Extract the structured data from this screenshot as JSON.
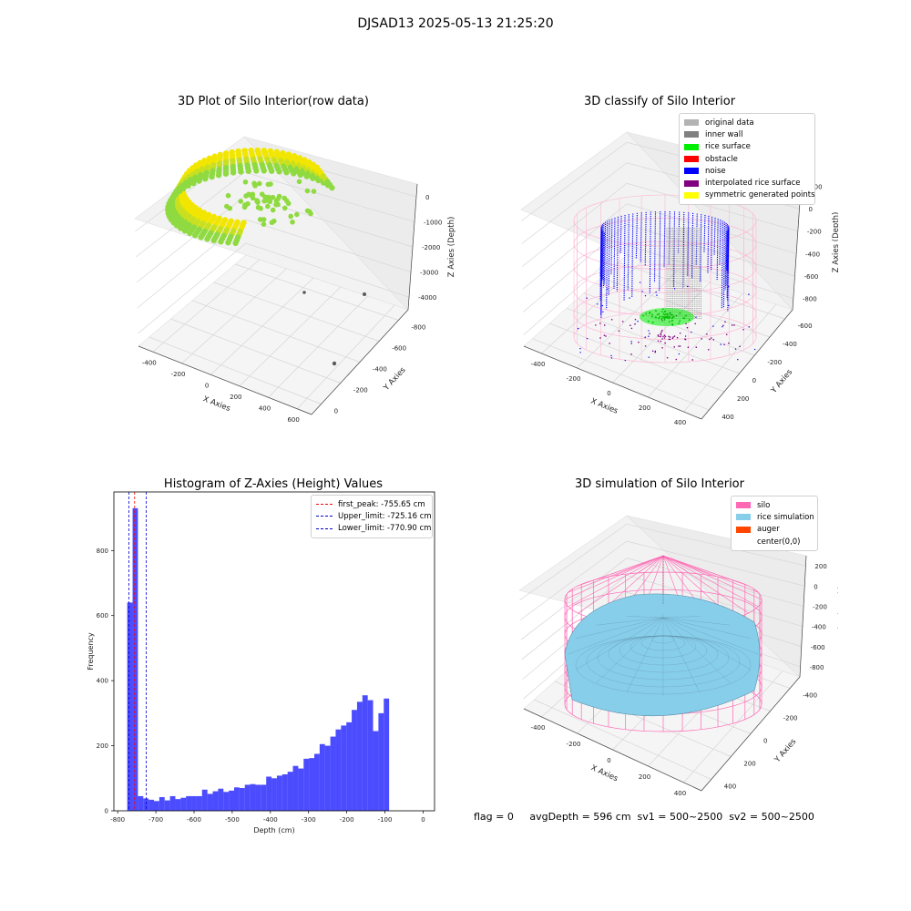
{
  "suptitle": "DJSAD13 2025-05-13 21:25:20",
  "footer": "flag = 0     avgDepth = 596 cm  sv1 = 500~2500  sv2 = 500~2500",
  "chart_data": [
    {
      "type": "scatter",
      "title": "3D Plot of Silo Interior(row data)",
      "xlabel": "X Axies",
      "ylabel": "Y Axies",
      "zlabel": "Z Axies (Depth)",
      "x_ticks": [
        "-400",
        "-200",
        "0",
        "200",
        "400",
        "600"
      ],
      "y_ticks": [
        "0",
        "-200",
        "-400",
        "-600",
        "-800"
      ],
      "z_ticks": [
        "0",
        "-1000",
        "-2000",
        "-3000",
        "-4000"
      ],
      "colors": [
        "#f2e600",
        "#c8e020",
        "#8fda40",
        "#5a5a5a"
      ]
    },
    {
      "type": "scatter",
      "title": "3D classify of Silo Interior",
      "xlabel": "X Axies",
      "ylabel": "Y Axies",
      "zlabel": "Z Axies (Depth)",
      "x_ticks": [
        "-400",
        "-200",
        "0",
        "200",
        "400"
      ],
      "y_ticks": [
        "400",
        "200",
        "0",
        "-200",
        "-400",
        "-600"
      ],
      "z_ticks": [
        "200",
        "0",
        "-200",
        "-400",
        "-600",
        "-800"
      ],
      "legend": [
        {
          "label": "original data",
          "color": "#b3b3b3"
        },
        {
          "label": "inner wall",
          "color": "#808080"
        },
        {
          "label": "rice surface",
          "color": "#00ee00"
        },
        {
          "label": "obstacle",
          "color": "#ff0000"
        },
        {
          "label": "noise",
          "color": "#0000ff"
        },
        {
          "label": "interpolated rice surface",
          "color": "#800080"
        },
        {
          "label": "symmetric generated points",
          "color": "#ffff00"
        }
      ]
    },
    {
      "type": "bar",
      "title": "Histogram of Z-Axies (Height) Values",
      "xlabel": "Depth (cm)",
      "ylabel": "Frequency",
      "xlim": [
        -810,
        30
      ],
      "ylim": [
        0,
        980
      ],
      "bin_width": 14,
      "bin_start": -775,
      "values": [
        640,
        930,
        45,
        38,
        34,
        30,
        42,
        32,
        45,
        36,
        40,
        45,
        45,
        45,
        65,
        52,
        60,
        68,
        58,
        62,
        72,
        70,
        80,
        82,
        80,
        80,
        105,
        100,
        108,
        112,
        120,
        138,
        130,
        160,
        162,
        175,
        205,
        200,
        228,
        250,
        262,
        272,
        310,
        335,
        355,
        340,
        245,
        300,
        345
      ],
      "x_ticks": [
        -800,
        -700,
        -600,
        -500,
        -400,
        -300,
        -200,
        -100,
        0
      ],
      "y_ticks": [
        0,
        200,
        400,
        600,
        800
      ],
      "color": "#0000ff",
      "vlines": [
        {
          "label": "first_peak: -755.65 cm",
          "x": -755.65,
          "color": "#ff0000"
        },
        {
          "label": "Upper_limit: -725.16 cm",
          "x": -725.16,
          "color": "#0000cc"
        },
        {
          "label": "Lower_limit: -770.90 cm",
          "x": -770.9,
          "color": "#0000cc"
        }
      ]
    },
    {
      "type": "scatter",
      "title": "3D simulation of Silo Interior",
      "xlabel": "X Axies",
      "ylabel": "Y Axies",
      "zlabel": "Z Axies (Depth)",
      "x_ticks": [
        "-400",
        "-200",
        "0",
        "200",
        "400"
      ],
      "y_ticks": [
        "400",
        "200",
        "0",
        "-200",
        "-400"
      ],
      "z_ticks": [
        "200",
        "0",
        "-200",
        "-400",
        "-600",
        "-800"
      ],
      "legend": [
        {
          "label": "silo",
          "color": "#ff69b4"
        },
        {
          "label": "rice simulation",
          "color": "#87ceeb"
        },
        {
          "label": "auger",
          "color": "#ff4500"
        },
        {
          "label": "center(0,0)",
          "color": ""
        }
      ]
    }
  ]
}
